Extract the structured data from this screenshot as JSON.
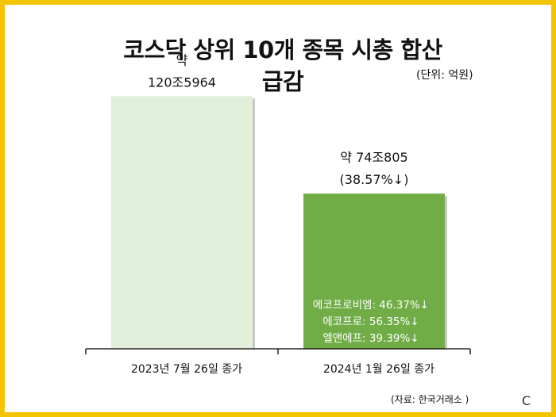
{
  "title_line1": "코스닥 상위 10개 종목 시총 합산",
  "title_line2": "급감",
  "unit": "(단위: 억원)",
  "source": "(자료: 한국거래소 )",
  "corner_mark": "C",
  "colors": {
    "border": "#f5c400",
    "bar1": "#e2efda",
    "bar2": "#70ad47",
    "axis": "#000000"
  },
  "chart_data": {
    "type": "bar",
    "categories": [
      "2023년 7월 26일 종가",
      "2024년 1월 26일 종가"
    ],
    "values": [
      1205964,
      740805
    ],
    "ylim": [
      0,
      1400000
    ],
    "xlabel": "",
    "ylabel": "",
    "bar_labels": [
      [
        "약",
        "120조5964"
      ],
      [
        "약 74조805",
        "(38.57%↓)"
      ]
    ],
    "annotations": [
      "에코프로비엠: 46.37%↓",
      "에코프로: 56.35%↓",
      "엘앤에프: 39.39%↓"
    ]
  }
}
